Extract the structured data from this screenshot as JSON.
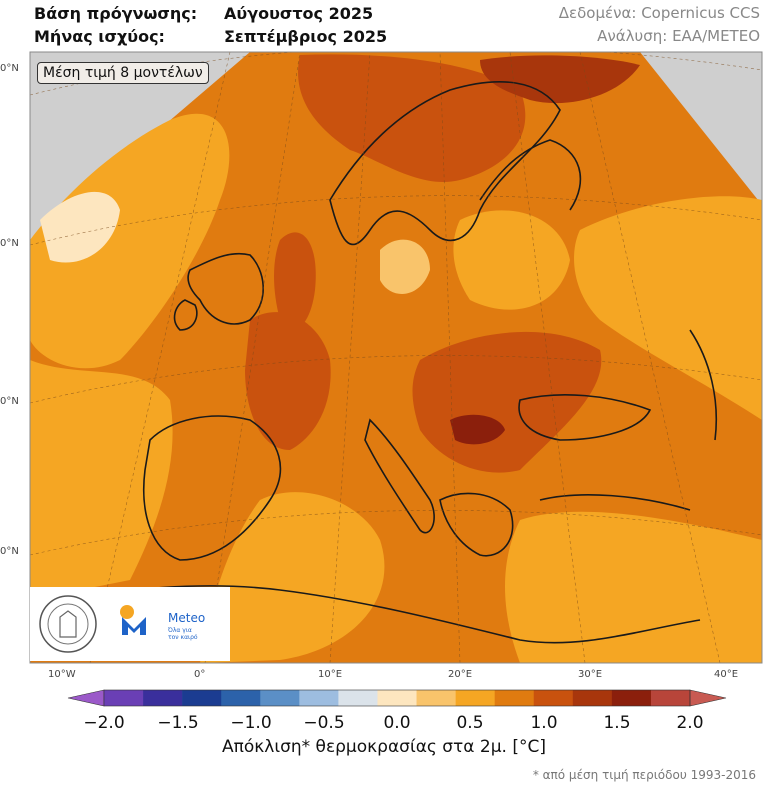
{
  "header": {
    "base_label": "Βάση πρόγνωσης:",
    "base_value": "Αύγουστος 2025",
    "valid_label": "Μήνας ισχύος:",
    "valid_value": "Σεπτέμβριος 2025",
    "data_source": "Δεδομένα: Copernicus CCS",
    "analysis": "Ανάλυση: ΕΑΑ/METEO"
  },
  "map": {
    "badge": "Μέση τιμή 8 μοντέλων",
    "lat_labels": [
      "0°N",
      "0°N",
      "0°N",
      "0°N"
    ],
    "lon_labels": [
      "10°W",
      "0°",
      "10°E",
      "20°E",
      "30°E",
      "40°E"
    ],
    "logos": {
      "meteo_name": "Meteo",
      "meteo_tagline_1": "Όλα για",
      "meteo_tagline_2": "τον καιρό",
      "observatory_seal_text": "ΕΘΝΙΚΟΝ ΑΣΤΕΡΟΣΚΟΠΕΙΟΝ ΑΘΗΝΩΝ"
    }
  },
  "colorbar": {
    "ticks": [
      "−2.0",
      "−1.5",
      "−1.0",
      "−0.5",
      "0.0",
      "0.5",
      "1.0",
      "1.5",
      "2.0"
    ],
    "label": "Απόκλιση* θερμοκρασίας στα 2μ. [°C]",
    "footnote": "* από μέση τιμή περιόδου 1993-2016",
    "colors": [
      "#9b59c9",
      "#6a3fb5",
      "#3a2f9c",
      "#1b3c91",
      "#2c62aa",
      "#5b8fc6",
      "#9dbde0",
      "#dbe3ea",
      "#fde6bf",
      "#f9c46b",
      "#f5a623",
      "#e07b10",
      "#c9520e",
      "#a8360c",
      "#8b1f0c",
      "#b8453a",
      "#c85a52"
    ]
  }
}
